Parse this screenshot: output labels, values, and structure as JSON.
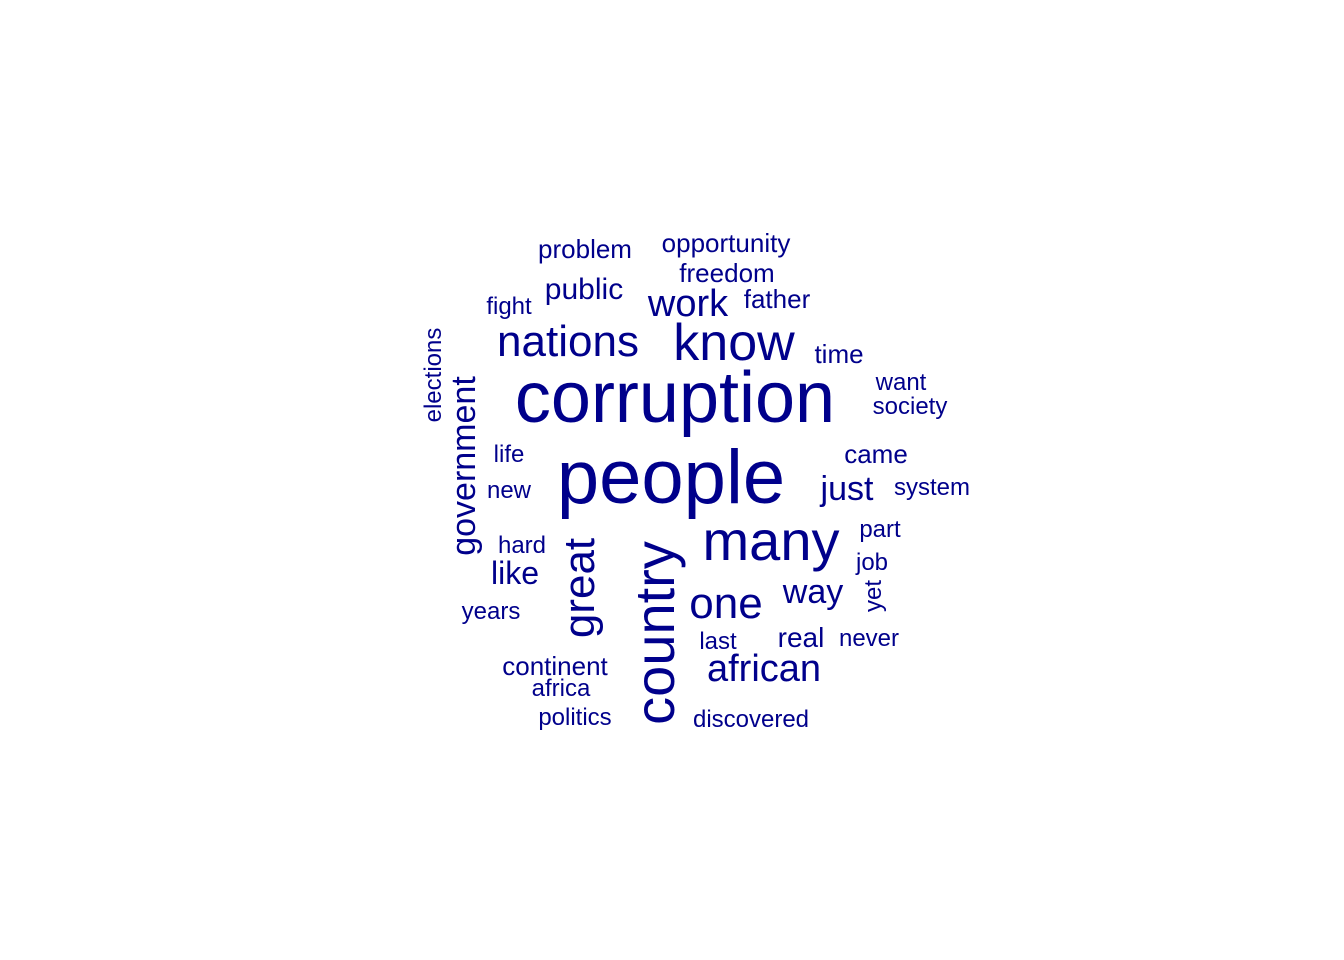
{
  "color": "#00008B",
  "words": [
    {
      "text": "corruption",
      "weight": 10
    },
    {
      "text": "people",
      "weight": 10
    },
    {
      "text": "country",
      "weight": 8
    },
    {
      "text": "many",
      "weight": 7
    },
    {
      "text": "know",
      "weight": 7
    },
    {
      "text": "government",
      "weight": 5
    },
    {
      "text": "nations",
      "weight": 6
    },
    {
      "text": "great",
      "weight": 6
    },
    {
      "text": "one",
      "weight": 5
    },
    {
      "text": "african",
      "weight": 5
    },
    {
      "text": "work",
      "weight": 5
    },
    {
      "text": "way",
      "weight": 4
    },
    {
      "text": "just",
      "weight": 4
    },
    {
      "text": "like",
      "weight": 4
    },
    {
      "text": "public",
      "weight": 4
    },
    {
      "text": "real",
      "weight": 3
    },
    {
      "text": "problem",
      "weight": 3
    },
    {
      "text": "opportunity",
      "weight": 3
    },
    {
      "text": "freedom",
      "weight": 3
    },
    {
      "text": "father",
      "weight": 3
    },
    {
      "text": "time",
      "weight": 3
    },
    {
      "text": "came",
      "weight": 3
    },
    {
      "text": "continent",
      "weight": 3
    },
    {
      "text": "fight",
      "weight": 2
    },
    {
      "text": "elections",
      "weight": 2
    },
    {
      "text": "want",
      "weight": 2
    },
    {
      "text": "society",
      "weight": 2
    },
    {
      "text": "life",
      "weight": 2
    },
    {
      "text": "new",
      "weight": 2
    },
    {
      "text": "system",
      "weight": 2
    },
    {
      "text": "hard",
      "weight": 2
    },
    {
      "text": "part",
      "weight": 2
    },
    {
      "text": "job",
      "weight": 2
    },
    {
      "text": "yet",
      "weight": 2
    },
    {
      "text": "years",
      "weight": 2
    },
    {
      "text": "last",
      "weight": 2
    },
    {
      "text": "never",
      "weight": 2
    },
    {
      "text": "africa",
      "weight": 2
    },
    {
      "text": "politics",
      "weight": 2
    },
    {
      "text": "discovered",
      "weight": 2
    }
  ]
}
